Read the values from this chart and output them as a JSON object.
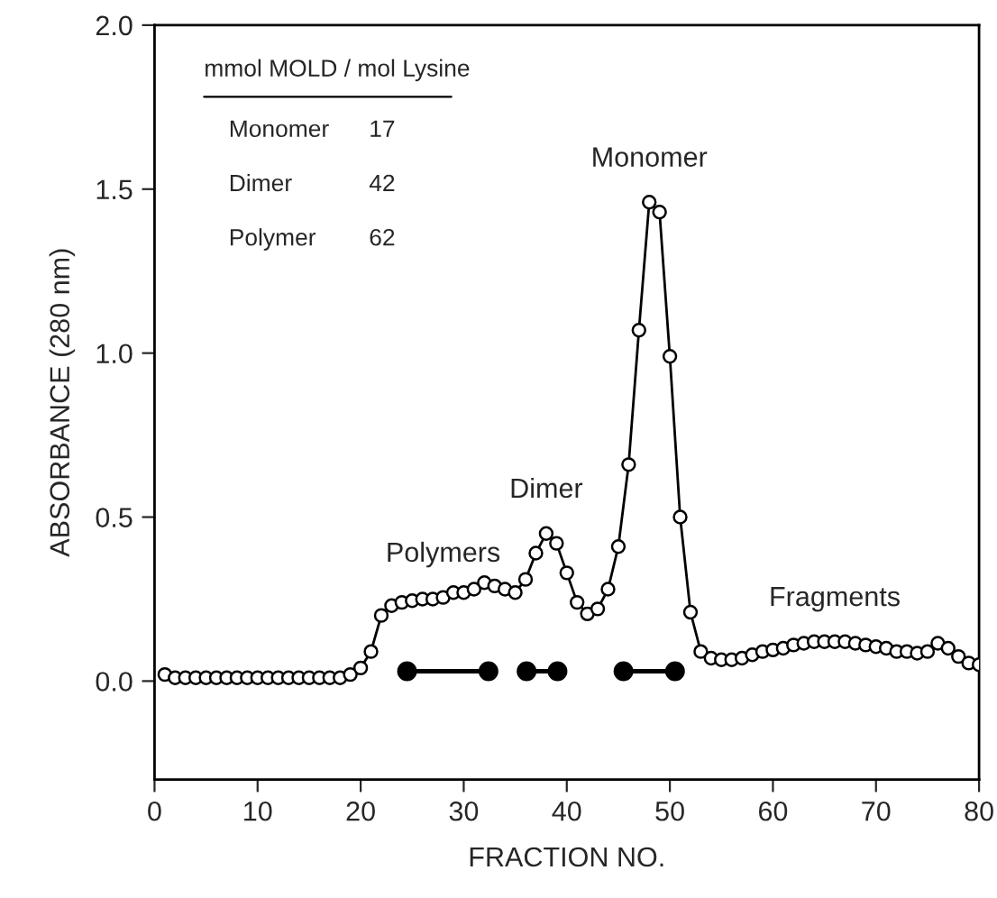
{
  "chart_data": {
    "type": "line",
    "xlabel": "FRACTION NO.",
    "ylabel": "ABSORBANCE (280 nm)",
    "xlim": [
      0,
      80
    ],
    "xticks": [
      0,
      10,
      20,
      30,
      40,
      50,
      60,
      70,
      80
    ],
    "ylim": [
      -0.3,
      2.0
    ],
    "yticks": [
      {
        "value": 0,
        "label": "0.0"
      },
      {
        "value": 0.5,
        "label": "0.5"
      },
      {
        "value": 1.0,
        "label": "1.0"
      },
      {
        "value": 1.5,
        "label": "1.5"
      },
      {
        "value": 2.0,
        "label": "2.0"
      }
    ],
    "grid": false,
    "marker": "circle",
    "line_style": "solid",
    "series": [
      {
        "color": "#000000",
        "x": [
          1,
          2,
          3,
          4,
          5,
          6,
          7,
          8,
          9,
          10,
          11,
          12,
          13,
          14,
          15,
          16,
          17,
          18,
          19,
          20,
          21,
          22,
          23,
          24,
          25,
          26,
          27,
          28,
          29,
          30,
          31,
          32,
          33,
          34,
          35,
          36,
          37,
          38,
          39,
          40,
          41,
          42,
          43,
          44,
          45,
          46,
          47,
          48,
          49,
          50,
          51,
          52,
          53,
          54,
          55,
          56,
          57,
          58,
          59,
          60,
          61,
          62,
          63,
          64,
          65,
          66,
          67,
          68,
          69,
          70,
          71,
          72,
          73,
          74,
          75,
          76,
          77,
          78,
          79,
          80
        ],
        "values": [
          0.02,
          0.01,
          0.01,
          0.01,
          0.01,
          0.01,
          0.01,
          0.01,
          0.01,
          0.01,
          0.01,
          0.01,
          0.01,
          0.01,
          0.01,
          0.01,
          0.01,
          0.01,
          0.02,
          0.04,
          0.09,
          0.2,
          0.23,
          0.24,
          0.245,
          0.25,
          0.25,
          0.255,
          0.27,
          0.27,
          0.28,
          0.3,
          0.29,
          0.28,
          0.27,
          0.31,
          0.39,
          0.45,
          0.42,
          0.33,
          0.24,
          0.205,
          0.22,
          0.28,
          0.41,
          0.66,
          1.07,
          1.46,
          1.43,
          0.99,
          0.5,
          0.21,
          0.09,
          0.07,
          0.065,
          0.065,
          0.07,
          0.08,
          0.09,
          0.095,
          0.1,
          0.11,
          0.115,
          0.12,
          0.12,
          0.12,
          0.12,
          0.115,
          0.11,
          0.105,
          0.1,
          0.09,
          0.09,
          0.085,
          0.09,
          0.115,
          0.1,
          0.075,
          0.055,
          0.05
        ]
      },
      {
        "color": "#000000",
        "x": [
          24.5,
          32.4
        ],
        "values": [
          0.03,
          0.03
        ]
      },
      {
        "color": "#000000",
        "x": [
          36.1,
          39.1
        ],
        "values": [
          0.03,
          0.03
        ]
      },
      {
        "color": "#000000",
        "x": [
          45.5,
          50.5
        ],
        "values": [
          0.03,
          0.03
        ]
      }
    ],
    "annotations": [
      "mmol MOLD / mol Lysine",
      "Monomer",
      "17",
      "Dimer",
      "42",
      "Polymer",
      "62",
      {
        "text": "Polymers",
        "x": 28,
        "y": 0.255
      },
      {
        "text": "Dimer",
        "x": 38,
        "y": 0.45
      },
      {
        "text": "Monomer",
        "x": 48,
        "y": 1.46
      },
      {
        "text": "Fragments",
        "x": 66,
        "y": 0.12
      }
    ]
  }
}
